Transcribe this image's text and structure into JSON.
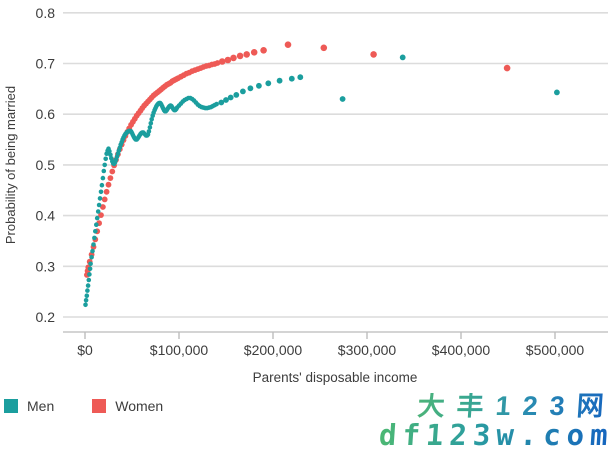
{
  "chart_data": {
    "type": "scatter",
    "title": "",
    "xlabel": "Parents' disposable income",
    "ylabel": "Probability of being married",
    "xlim": [
      0,
      530000
    ],
    "ylim": [
      0.2,
      0.8
    ],
    "grid": "horizontal",
    "legend_position": "bottom-left",
    "x_ticks": [
      0,
      100000,
      200000,
      300000,
      400000,
      500000
    ],
    "x_tick_labels": [
      "$0",
      "$100,000",
      "$200,000",
      "$300,000",
      "$400,000",
      "$500,000"
    ],
    "y_ticks": [
      0.2,
      0.3,
      0.4,
      0.5,
      0.6,
      0.7,
      0.8
    ],
    "y_tick_labels": [
      "0.2",
      "0.3",
      "0.4",
      "0.5",
      "0.6",
      "0.7",
      "0.8"
    ],
    "series": [
      {
        "name": "Men",
        "color": "#1b9e9e",
        "x_unit": "thousand_dollars",
        "line_points": [
          [
            0.5,
            0.224
          ],
          [
            1.2,
            0.233
          ],
          [
            1.9,
            0.242
          ],
          [
            2.6,
            0.252
          ],
          [
            3.3,
            0.262
          ],
          [
            4.0,
            0.273
          ],
          [
            4.7,
            0.284
          ],
          [
            5.4,
            0.295
          ],
          [
            6,
            0.305
          ],
          [
            7,
            0.318
          ],
          [
            8,
            0.33
          ],
          [
            9,
            0.343
          ],
          [
            10,
            0.356
          ],
          [
            11,
            0.369
          ],
          [
            12,
            0.382
          ],
          [
            13,
            0.395
          ],
          [
            14,
            0.408
          ],
          [
            15,
            0.421
          ],
          [
            16,
            0.434
          ],
          [
            17,
            0.447
          ],
          [
            18,
            0.46
          ],
          [
            19,
            0.474
          ],
          [
            20,
            0.488
          ],
          [
            21,
            0.5
          ],
          [
            22,
            0.512
          ],
          [
            23,
            0.522
          ],
          [
            24,
            0.528
          ],
          [
            25,
            0.532
          ],
          [
            26,
            0.527
          ],
          [
            27,
            0.52
          ],
          [
            28,
            0.513
          ],
          [
            29,
            0.507
          ],
          [
            30,
            0.503
          ],
          [
            31,
            0.502
          ],
          [
            32,
            0.505
          ],
          [
            33,
            0.51
          ],
          [
            34,
            0.516
          ],
          [
            35,
            0.522
          ],
          [
            36,
            0.528
          ],
          [
            37,
            0.534
          ],
          [
            38,
            0.54
          ],
          [
            39,
            0.545
          ],
          [
            40,
            0.55
          ],
          [
            41,
            0.554
          ],
          [
            42,
            0.558
          ],
          [
            43,
            0.561
          ],
          [
            44,
            0.563
          ],
          [
            45,
            0.565
          ],
          [
            46,
            0.566
          ],
          [
            47,
            0.567
          ],
          [
            48,
            0.567
          ],
          [
            49,
            0.566
          ],
          [
            50,
            0.563
          ],
          [
            51,
            0.559
          ],
          [
            52,
            0.555
          ],
          [
            53,
            0.552
          ],
          [
            54,
            0.55
          ],
          [
            55,
            0.55
          ],
          [
            56,
            0.552
          ],
          [
            57,
            0.555
          ],
          [
            58,
            0.558
          ],
          [
            59,
            0.561
          ],
          [
            60,
            0.563
          ],
          [
            61,
            0.564
          ],
          [
            62,
            0.564
          ],
          [
            63,
            0.562
          ],
          [
            64,
            0.56
          ],
          [
            65,
            0.558
          ],
          [
            66,
            0.558
          ],
          [
            67,
            0.56
          ],
          [
            68,
            0.566
          ],
          [
            69,
            0.574
          ],
          [
            70,
            0.582
          ],
          [
            71,
            0.59
          ],
          [
            72,
            0.597
          ],
          [
            73,
            0.603
          ],
          [
            74,
            0.608
          ],
          [
            75,
            0.612
          ],
          [
            76,
            0.616
          ],
          [
            77,
            0.619
          ],
          [
            78,
            0.621
          ],
          [
            79,
            0.622
          ],
          [
            80,
            0.622
          ],
          [
            81,
            0.62
          ],
          [
            82,
            0.616
          ],
          [
            83,
            0.612
          ],
          [
            84,
            0.608
          ],
          [
            85,
            0.606
          ],
          [
            86,
            0.606
          ],
          [
            87,
            0.608
          ],
          [
            88,
            0.611
          ],
          [
            89,
            0.614
          ],
          [
            90,
            0.616
          ],
          [
            91,
            0.617
          ],
          [
            92,
            0.616
          ],
          [
            93,
            0.613
          ],
          [
            94,
            0.61
          ],
          [
            95,
            0.608
          ],
          [
            96,
            0.608
          ],
          [
            97,
            0.61
          ],
          [
            98,
            0.613
          ],
          [
            100,
            0.617
          ],
          [
            102,
            0.621
          ],
          [
            104,
            0.625
          ],
          [
            106,
            0.628
          ],
          [
            108,
            0.63
          ],
          [
            110,
            0.632
          ],
          [
            112,
            0.632
          ],
          [
            114,
            0.63
          ],
          [
            116,
            0.627
          ],
          [
            118,
            0.623
          ],
          [
            120,
            0.619
          ],
          [
            122,
            0.616
          ],
          [
            124,
            0.614
          ],
          [
            126,
            0.613
          ],
          [
            128,
            0.612
          ],
          [
            130,
            0.612
          ],
          [
            132,
            0.613
          ],
          [
            134,
            0.614
          ],
          [
            136,
            0.616
          ],
          [
            138,
            0.618
          ],
          [
            140,
            0.62
          ]
        ],
        "dot_points": [
          [
            145,
            0.623
          ],
          [
            150,
            0.628
          ],
          [
            155,
            0.633
          ],
          [
            161,
            0.638
          ],
          [
            168,
            0.645
          ],
          [
            176,
            0.651
          ],
          [
            185,
            0.656
          ],
          [
            195,
            0.661
          ],
          [
            207,
            0.666
          ],
          [
            220,
            0.67
          ],
          [
            229,
            0.673
          ],
          [
            274,
            0.63
          ],
          [
            338,
            0.712
          ],
          [
            502,
            0.643
          ]
        ]
      },
      {
        "name": "Women",
        "color": "#ee5a56",
        "x_unit": "thousand_dollars",
        "line_points": [
          [
            2,
            0.283
          ],
          [
            2.8,
            0.291
          ],
          [
            3.5,
            0.298
          ],
          [
            5,
            0.309
          ],
          [
            7,
            0.323
          ],
          [
            9,
            0.338
          ],
          [
            11,
            0.353
          ],
          [
            13,
            0.369
          ],
          [
            15,
            0.385
          ],
          [
            17,
            0.401
          ],
          [
            19,
            0.417
          ],
          [
            21,
            0.432
          ],
          [
            23,
            0.447
          ],
          [
            25,
            0.461
          ],
          [
            27,
            0.474
          ],
          [
            29,
            0.487
          ],
          [
            31,
            0.499
          ],
          [
            33,
            0.51
          ],
          [
            35,
            0.521
          ],
          [
            37,
            0.531
          ],
          [
            39,
            0.54
          ],
          [
            41,
            0.549
          ],
          [
            43,
            0.557
          ],
          [
            45,
            0.565
          ],
          [
            47,
            0.572
          ],
          [
            49,
            0.579
          ],
          [
            51,
            0.585
          ],
          [
            53,
            0.591
          ],
          [
            55,
            0.597
          ],
          [
            57,
            0.602
          ],
          [
            59,
            0.607
          ],
          [
            61,
            0.612
          ],
          [
            63,
            0.617
          ],
          [
            65,
            0.621
          ],
          [
            67,
            0.625
          ],
          [
            69,
            0.629
          ],
          [
            71,
            0.633
          ],
          [
            73,
            0.637
          ],
          [
            75,
            0.64
          ],
          [
            77,
            0.643
          ],
          [
            79,
            0.646
          ],
          [
            81,
            0.649
          ],
          [
            83,
            0.652
          ],
          [
            85,
            0.655
          ],
          [
            87,
            0.658
          ],
          [
            89,
            0.66
          ],
          [
            91,
            0.662
          ],
          [
            93,
            0.665
          ],
          [
            95,
            0.667
          ],
          [
            97,
            0.669
          ],
          [
            99,
            0.671
          ],
          [
            102,
            0.674
          ],
          [
            105,
            0.677
          ],
          [
            108,
            0.68
          ],
          [
            111,
            0.682
          ],
          [
            114,
            0.685
          ],
          [
            117,
            0.687
          ],
          [
            120,
            0.689
          ],
          [
            123,
            0.691
          ],
          [
            126,
            0.693
          ],
          [
            129,
            0.695
          ],
          [
            132,
            0.696
          ],
          [
            135,
            0.698
          ],
          [
            138,
            0.699
          ],
          [
            141,
            0.701
          ]
        ],
        "dot_points": [
          [
            146,
            0.704
          ],
          [
            152,
            0.707
          ],
          [
            158,
            0.711
          ],
          [
            165,
            0.715
          ],
          [
            172,
            0.718
          ],
          [
            180,
            0.722
          ],
          [
            190,
            0.726
          ],
          [
            216,
            0.737
          ],
          [
            254,
            0.731
          ],
          [
            307,
            0.718
          ],
          [
            449,
            0.691
          ]
        ]
      }
    ]
  },
  "legend": {
    "men_label": "Men",
    "women_label": "Women"
  },
  "watermark": {
    "line1": "大丰123网",
    "line2": "df123w.com"
  },
  "colors": {
    "men": "#1b9e9e",
    "women": "#ee5a56",
    "gridline": "#dcdcdc",
    "axis_line": "#c6c6c6",
    "tick": "#bdbdbd",
    "text": "#3d3d3d",
    "watermark_green": "#5bbb68",
    "watermark_blue": "#1563c0"
  }
}
